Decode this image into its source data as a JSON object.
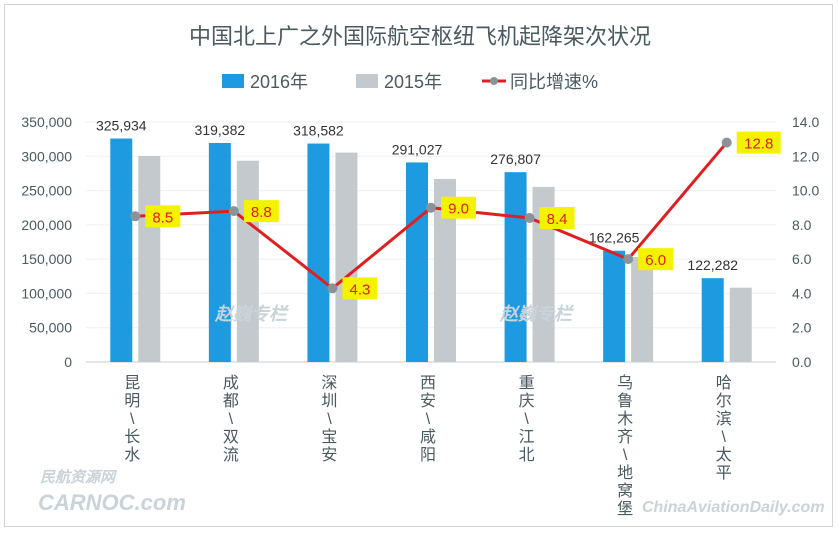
{
  "chart_data": {
    "type": "bar",
    "title": "中国北上广之外国际航空枢纽飞机起降架次状况",
    "categories": [
      "昆明/长水",
      "成都/双流",
      "深圳/宝安",
      "西安/咸阳",
      "重庆/江北",
      "乌鲁木齐/地窝堡",
      "哈尔滨/太平"
    ],
    "series": [
      {
        "name": "2016年",
        "type": "bar",
        "axis": "left",
        "color": "#1e9be0",
        "values": [
          325934,
          319382,
          318582,
          291027,
          276807,
          162265,
          122282
        ]
      },
      {
        "name": "2015年",
        "type": "bar",
        "axis": "left",
        "color": "#c3c9cc",
        "values": [
          300400,
          293550,
          305450,
          267000,
          255360,
          153080,
          108400
        ]
      },
      {
        "name": "同比增速%",
        "type": "line",
        "axis": "right",
        "color": "#e02020",
        "marker_color": "#8a9398",
        "values": [
          8.5,
          8.8,
          4.3,
          9.0,
          8.4,
          6.0,
          12.8
        ]
      }
    ],
    "bar_data_labels": [
      "325,934",
      "319,382",
      "318,582",
      "291,027",
      "276,807",
      "162,265",
      "122,282"
    ],
    "line_data_labels": [
      "8.5",
      "8.8",
      "4.3",
      "9.0",
      "8.4",
      "6.0",
      "12.8"
    ],
    "line_label_bg": "#f5f200",
    "left_axis": {
      "range": [
        0,
        350000
      ],
      "ticks": [
        "0",
        "50,000",
        "100,000",
        "150,000",
        "200,000",
        "250,000",
        "300,000",
        "350,000"
      ]
    },
    "right_axis": {
      "range": [
        0,
        14
      ],
      "ticks": [
        "0.0",
        "2.0",
        "4.0",
        "6.0",
        "8.0",
        "10.0",
        "12.0",
        "14.0"
      ]
    },
    "grid": true,
    "legend_placement": "top"
  },
  "watermarks": {
    "column": "赵巍专栏",
    "carnoc_cn": "民航资源网",
    "carnoc": "CARNOC.com",
    "cad": "ChinaAviationDaily.com"
  }
}
